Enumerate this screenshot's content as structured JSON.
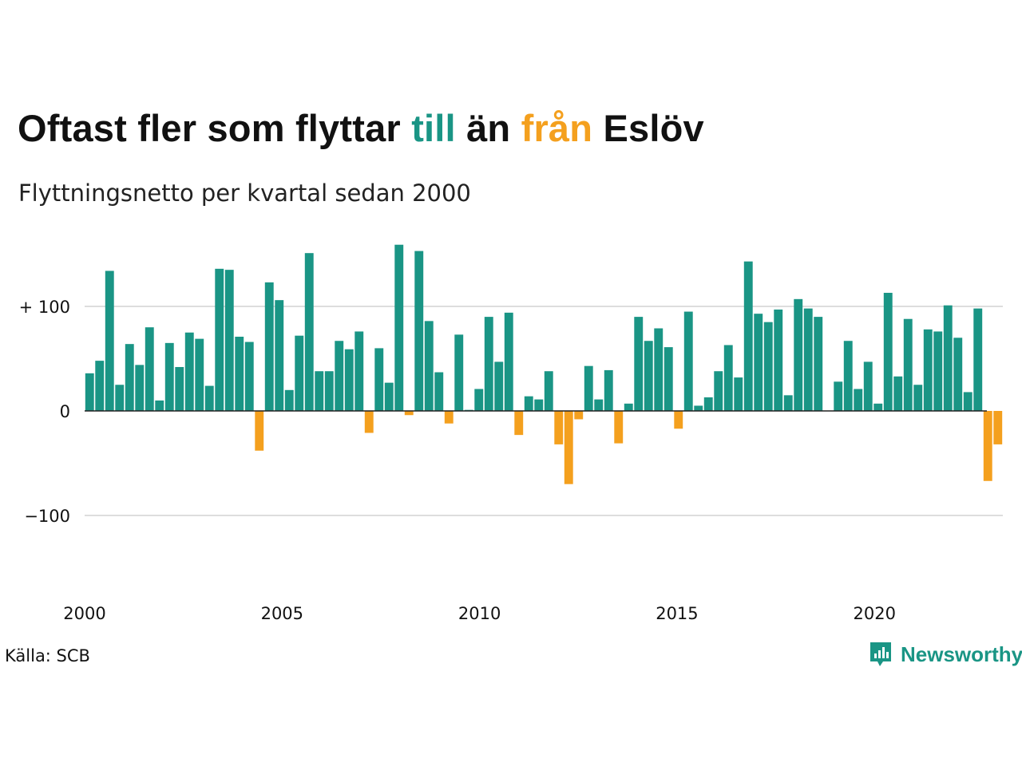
{
  "title": {
    "part1": "Oftast fler som flyttar ",
    "till": "till",
    "part2": " än ",
    "fran": "från",
    "part3": " Eslöv"
  },
  "subtitle": "Flyttningsnetto per kvartal sedan 2000",
  "source": "Källa: SCB",
  "brand": "Newsworthy",
  "colors": {
    "positive": "#1a9585",
    "negative": "#f4a01e",
    "grid": "#dddddd",
    "zero_line": "#222222"
  },
  "chart_data": {
    "type": "bar",
    "title": "Oftast fler som flyttar till än från Eslöv",
    "subtitle": "Flyttningsnetto per kvartal sedan 2000",
    "x_start": 2000.0,
    "x_step": 0.25,
    "xlim": [
      2000,
      2023.25
    ],
    "ylim": [
      -150,
      160
    ],
    "yticks": [
      100,
      0,
      -100
    ],
    "ytick_labels": [
      "+ 100",
      "0",
      "−100"
    ],
    "xticks": [
      2000,
      2005,
      2010,
      2015,
      2020
    ],
    "xtick_labels": [
      "2000",
      "2005",
      "2010",
      "2015",
      "2020"
    ],
    "grid": true,
    "values": [
      36,
      48,
      134,
      25,
      64,
      44,
      80,
      10,
      65,
      42,
      75,
      69,
      24,
      136,
      135,
      71,
      66,
      -38,
      123,
      106,
      20,
      72,
      151,
      38,
      38,
      67,
      59,
      76,
      -21,
      60,
      27,
      159,
      -4,
      153,
      86,
      37,
      -12,
      73,
      1,
      21,
      90,
      47,
      94,
      -23,
      14,
      11,
      38,
      -32,
      -70,
      -8,
      43,
      11,
      39,
      -31,
      7,
      90,
      67,
      79,
      61,
      -17,
      95,
      5,
      13,
      38,
      63,
      32,
      143,
      93,
      85,
      97,
      15,
      107,
      98,
      90,
      0,
      28,
      67,
      21,
      47,
      7,
      113,
      33,
      88,
      25,
      78,
      76,
      101,
      70,
      18,
      98,
      -67,
      -32
    ]
  }
}
